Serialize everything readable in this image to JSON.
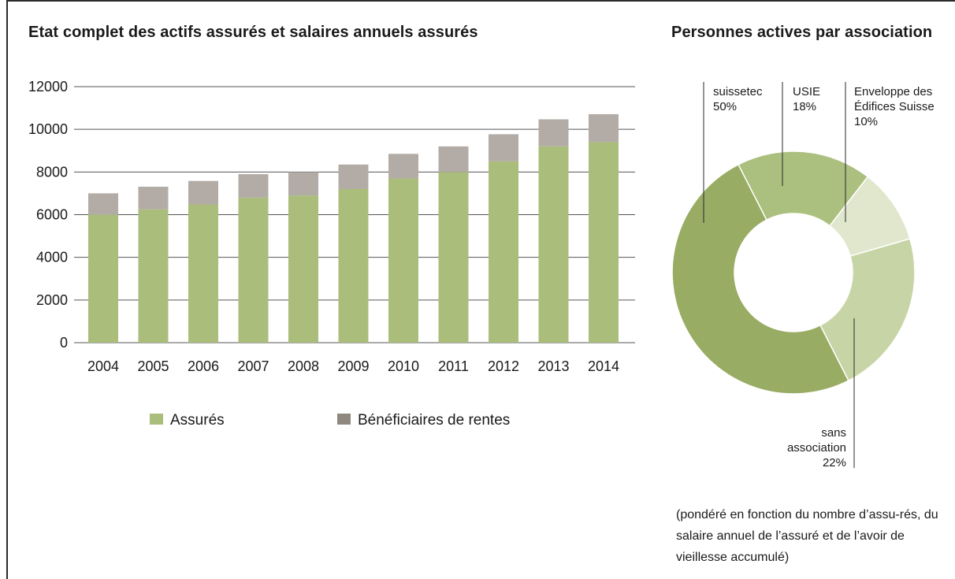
{
  "chart_data": [
    {
      "type": "bar",
      "stacked": true,
      "title": "Etat complet des actifs assurés et salaires annuels assurés",
      "categories": [
        "2004",
        "2005",
        "2006",
        "2007",
        "2008",
        "2009",
        "2010",
        "2011",
        "2012",
        "2013",
        "2014"
      ],
      "series": [
        {
          "name": "Assurés",
          "color": "#aabd7b",
          "values": [
            6000,
            6250,
            6480,
            6800,
            6900,
            7200,
            7700,
            8000,
            8500,
            9200,
            9400
          ]
        },
        {
          "name": "Bénéficiaires de rentes",
          "color": "#b3aca6",
          "values": [
            1000,
            1060,
            1100,
            1100,
            1100,
            1150,
            1150,
            1200,
            1270,
            1270,
            1310
          ]
        }
      ],
      "ylim": [
        0,
        12000
      ],
      "yticks": [
        "0",
        "2000",
        "4000",
        "6000",
        "8000",
        "10000",
        "12000"
      ],
      "grid": true,
      "legend": "bottom",
      "legend_items": [
        {
          "label": "Assurés",
          "color": "#aabd7b"
        },
        {
          "label": "Bénéficiaires de rentes",
          "color": "#8f8880"
        }
      ]
    },
    {
      "type": "pie",
      "donut": true,
      "title": "Personnes actives par association",
      "slices": [
        {
          "label": "suissetec",
          "value": 50,
          "color": "#98ac64"
        },
        {
          "label": "USIE",
          "value": 18,
          "color": "#abbf7e"
        },
        {
          "label": "Enveloppe des Édifices Suisse",
          "value": 10,
          "color": "#e0e7cd"
        },
        {
          "label": "sans association",
          "value": 22,
          "color": "#c7d5a6"
        }
      ],
      "labels": [
        {
          "lines": [
            "suissetec",
            "50%"
          ]
        },
        {
          "lines": [
            "USIE",
            "18%"
          ]
        },
        {
          "lines": [
            "Enveloppe des",
            "Édifices Suisse",
            "10%"
          ]
        },
        {
          "lines": [
            "sans",
            "association",
            "22%"
          ]
        }
      ],
      "note": "(pondéré en fonction du nombre d’assu-rés, du salaire annuel de l’assuré et de l’avoir de vieillesse accumulé)"
    }
  ]
}
